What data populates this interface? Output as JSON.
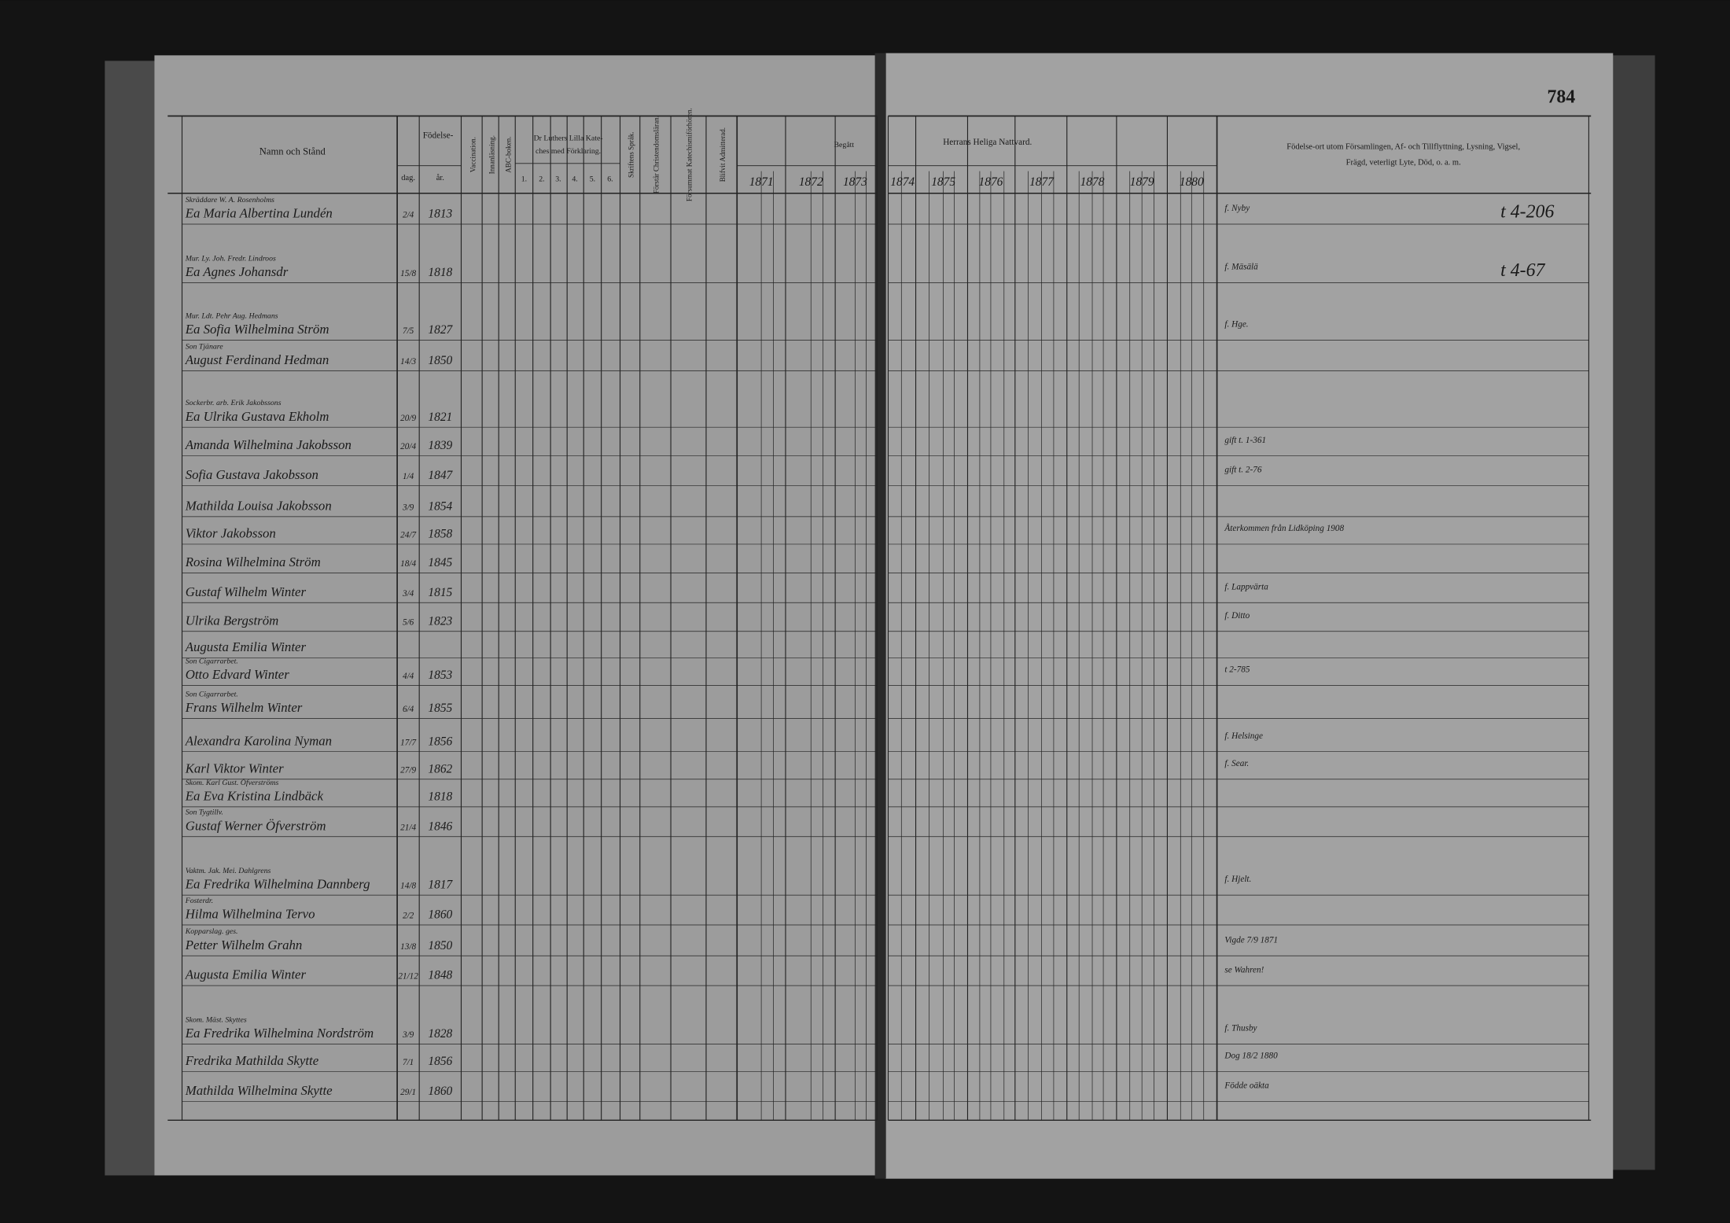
{
  "page_number": "784",
  "left_header": {
    "name_col": "Namn och Stånd",
    "birth": "Födelse-",
    "day": "dag.",
    "year": "år.",
    "vaccination": "Vaccination.",
    "reading": "Innanläsning.",
    "abc": "ABC-boken.",
    "catechism_line1": "Dr Luthers Lilla Kate-",
    "catechism_line2": "ches med Förklaring.",
    "catechism_parts": [
      "1.",
      "2.",
      "3.",
      "4.",
      "5.",
      "6."
    ],
    "scripture": "Skriftens Språk.",
    "understands": "Förstår Christendomsläran.",
    "missed": "Försummat Katechismiförhören.",
    "admitted": "Blifvit Admitterad.",
    "partaken": "Begått",
    "years": [
      "1871",
      "1872",
      "1873"
    ]
  },
  "right_header": {
    "communion": "Herrans Heliga Nattvard.",
    "years": [
      "1874",
      "1875",
      "1876",
      "1877",
      "1878",
      "1879",
      "1880"
    ],
    "remarks_line1": "Födelse-ort utom Församlingen, Af- och Tillflyttning, Lysning, Vigsel,",
    "remarks_line2": "Frägd, veterligt Lyte, Död, o. a. m."
  },
  "rows": [
    {
      "title": "Skräddare W. A. Rosenholms",
      "name": "Ea Maria Albertina Lundén",
      "day": "2/4",
      "year": "1813",
      "note": "f. Nyby",
      "remark": "t 4-206"
    },
    {
      "title": "Mur. Ly. Joh. Fredr. Lindroos",
      "name": "Ea Agnes Johansdr",
      "day": "15/8",
      "year": "1818",
      "note": "f. Mäsälä",
      "remark": "t 4-67"
    },
    {
      "title": "Mur. Ldt. Pehr Aug. Hedmans",
      "name": "Ea Sofia Wilhelmina Ström",
      "day": "7/5",
      "year": "1827",
      "note": "f. Hge."
    },
    {
      "title": "Son Tjänare",
      "name": "August Ferdinand Hedman",
      "day": "14/3",
      "year": "1850"
    },
    {
      "title": "Sockerbr. arb. Erik Jakobssons",
      "name": "Ea Ulrika Gustava Ekholm",
      "day": "20/9",
      "year": "1821"
    },
    {
      "name": "Amanda Wilhelmina Jakobsson",
      "day": "20/4",
      "year": "1839",
      "note": "gift t. 1-361"
    },
    {
      "name": "Sofia Gustava Jakobsson",
      "day": "1/4",
      "year": "1847",
      "note": "gift t. 2-76"
    },
    {
      "name": "Mathilda Louisa Jakobsson",
      "day": "3/9",
      "year": "1854"
    },
    {
      "name": "Viktor Jakobsson",
      "day": "24/7",
      "year": "1858",
      "note": "Återkommen från Lidköping 1908"
    },
    {
      "name": "Rosina Wilhelmina Ström",
      "day": "18/4",
      "year": "1845"
    },
    {
      "name": "Gustaf Wilhelm Winter",
      "day": "3/4",
      "year": "1815",
      "note": "f. Lappvärta"
    },
    {
      "name": "Ulrika Bergström",
      "day": "5/6",
      "year": "1823",
      "note": "f. Ditto"
    },
    {
      "name": "Augusta Emilia Winter"
    },
    {
      "title": "Son Cigarrarbet.",
      "name": "Otto Edvard Winter",
      "day": "4/4",
      "year": "1853",
      "note": "t 2-785"
    },
    {
      "title": "Son Cigarrarbet.",
      "name": "Frans Wilhelm Winter",
      "day": "6/4",
      "year": "1855"
    },
    {
      "name": "Alexandra Karolina Nyman",
      "day": "17/7",
      "year": "1856",
      "note": "f. Helsinge"
    },
    {
      "name": "Karl Viktor Winter",
      "day": "27/9",
      "year": "1862",
      "note": "f. Sear."
    },
    {
      "title": "Skom. Karl Gust. Öfverströms",
      "name": "Ea Eva Kristina Lindbäck",
      "year": "1818"
    },
    {
      "title": "Son Tygtillv.",
      "name": "Gustaf Werner Öfverström",
      "day": "21/4",
      "year": "1846"
    },
    {
      "title": "Vaktm. Jak. Mei. Dahlgrens",
      "name": "Ea Fredrika Wilhelmina Dannberg",
      "day": "14/8",
      "year": "1817",
      "note": "f. Hjelt."
    },
    {
      "title": "Fosterdr.",
      "name": "Hilma Wilhelmina Tervo",
      "day": "2/2",
      "year": "1860"
    },
    {
      "title": "Kopparslag. ges.",
      "name": "Petter Wilhelm Grahn",
      "day": "13/8",
      "year": "1850",
      "note": "Vigde 7/9 1871"
    },
    {
      "name": "Augusta Emilia Winter",
      "day": "21/12",
      "year": "1848",
      "note": "se Wahren!"
    },
    {
      "title": "Skom. Mäst. Skyttes",
      "name": "Ea Fredrika Wilhelmina Nordström",
      "day": "3/9",
      "year": "1828",
      "note": "f. Thusby"
    },
    {
      "name": "Fredrika Mathilda Skytte",
      "day": "7/1",
      "year": "1856",
      "note": "Dog 18/2 1880"
    },
    {
      "name": "Mathilda Wilhelmina Skytte",
      "day": "29/1",
      "year": "1860",
      "note": "Födde oäkta"
    }
  ]
}
